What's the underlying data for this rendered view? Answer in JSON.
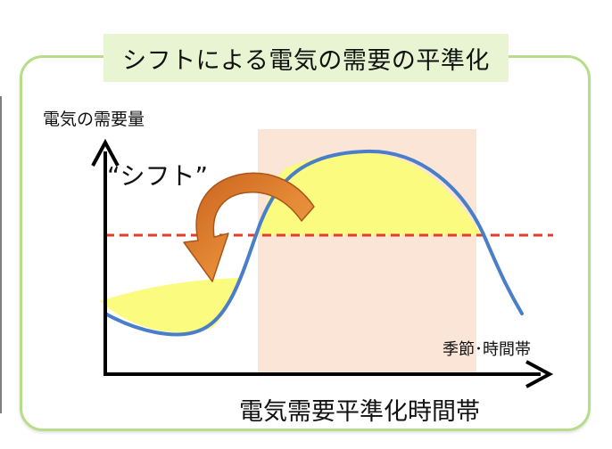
{
  "diagram": {
    "title": "シフトによる電気の需要の平準化",
    "y_axis_label": "電気の需要量",
    "x_axis_label": "季節･時間帯",
    "shift_label": "“シフト”",
    "period_label": "電気需要平準化時間帯",
    "colors": {
      "frame_border": "#b7dc8a",
      "title_bg": "#e9f5d2",
      "period_band": "#fbe5d6",
      "demand_curve": "#4a7ec8",
      "average_line": "#e03c2c",
      "shifted_area": "#fbfb80",
      "shift_arrow": "#e07b2a",
      "axis": "#000000"
    }
  }
}
